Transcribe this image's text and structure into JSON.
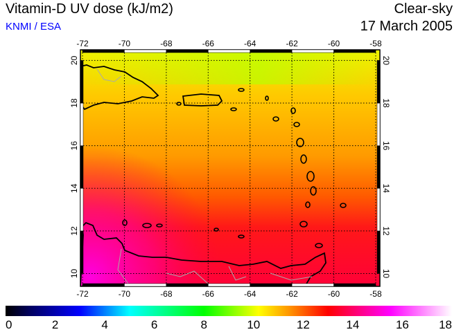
{
  "header": {
    "title": "Vitamin-D UV dose (kJ/m2)",
    "credit": "KNMI / ESA",
    "condition": "Clear-sky",
    "date": "17 March 2005"
  },
  "map": {
    "lon_range": [
      -72.1,
      -57.8
    ],
    "lat_range": [
      9.4,
      20.5
    ],
    "lon_ticks": [
      -72,
      -70,
      -68,
      -66,
      -64,
      -62,
      -60,
      -58
    ],
    "lat_ticks": [
      10,
      12,
      14,
      16,
      18,
      20
    ],
    "grid": "dotted"
  },
  "colorbar": {
    "min": 0,
    "max": 18,
    "labels": [
      "0",
      "2",
      "4",
      "6",
      "8",
      "10",
      "12",
      "14",
      "16",
      "18"
    ],
    "stops": [
      [
        0,
        "#000000"
      ],
      [
        1,
        "#000060"
      ],
      [
        3,
        "#0000ff"
      ],
      [
        5,
        "#00ffff"
      ],
      [
        8,
        "#00ff00"
      ],
      [
        10.2,
        "#ffff00"
      ],
      [
        11.5,
        "#ff9000"
      ],
      [
        13,
        "#ff0000"
      ],
      [
        15.5,
        "#ff00ff"
      ],
      [
        18,
        "#ffffff"
      ]
    ]
  }
}
